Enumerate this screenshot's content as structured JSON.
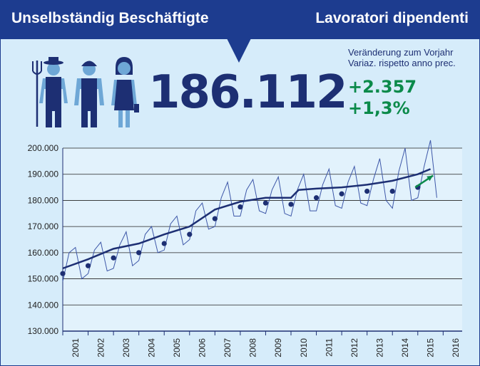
{
  "header": {
    "title_left": "Unselbständig Beschäftigte",
    "title_right": "Lavoratori dipendenti"
  },
  "headline": {
    "value": "186.112",
    "change_label_de": "Veränderung zum Vorjahr",
    "change_label_it": "Variaz. rispetto anno prec.",
    "change_abs": "+2.357",
    "change_pct": "+1,3%"
  },
  "icons": [
    "farmer-icon",
    "worker-icon",
    "office-worker-icon"
  ],
  "colors": {
    "header_bg": "#1d3c8f",
    "panel_bg": "#d6ecfa",
    "series_dark": "#1d2f73",
    "series_light": "#4a63b0",
    "accent_green": "#0b8a4a",
    "icon_blue": "#6ea7d6"
  },
  "chart_data": {
    "type": "line",
    "ylim": [
      130000,
      200000
    ],
    "y_ticks": [
      "130.000",
      "140.000",
      "150.000",
      "160.000",
      "170.000",
      "180.000",
      "190.000",
      "200.000"
    ],
    "x_tick_labels": [
      "2001",
      "2002",
      "2003",
      "2004",
      "2005",
      "2006",
      "2007",
      "2008",
      "2009",
      "2010",
      "2011",
      "2012",
      "2013",
      "2014",
      "2015",
      "2016"
    ],
    "grid": true,
    "series": [
      {
        "style": "monthly thin line",
        "x": [
          2001.0,
          2001.25,
          2001.5,
          2001.75,
          2002.0,
          2002.25,
          2002.5,
          2002.75,
          2003.0,
          2003.25,
          2003.5,
          2003.75,
          2004.0,
          2004.25,
          2004.5,
          2004.75,
          2005.0,
          2005.25,
          2005.5,
          2005.75,
          2006.0,
          2006.25,
          2006.5,
          2006.75,
          2007.0,
          2007.25,
          2007.5,
          2007.75,
          2008.0,
          2008.25,
          2008.5,
          2008.75,
          2009.0,
          2009.25,
          2009.5,
          2009.75,
          2010.0,
          2010.25,
          2010.5,
          2010.75,
          2011.0,
          2011.25,
          2011.5,
          2011.75,
          2012.0,
          2012.25,
          2012.5,
          2012.75,
          2013.0,
          2013.25,
          2013.5,
          2013.75,
          2014.0,
          2014.25,
          2014.5,
          2014.75,
          2015.0,
          2015.25,
          2015.5,
          2015.75
        ],
        "values": [
          149000,
          160000,
          162000,
          150000,
          152000,
          161000,
          164000,
          153000,
          154000,
          163000,
          168000,
          155000,
          157000,
          167000,
          170000,
          160000,
          161000,
          171000,
          174000,
          163000,
          165000,
          176000,
          179000,
          169000,
          170000,
          181000,
          187000,
          174000,
          174000,
          184000,
          188000,
          176000,
          175000,
          184000,
          189000,
          175000,
          174000,
          184000,
          190000,
          176000,
          176000,
          186000,
          192000,
          178000,
          177000,
          187000,
          193000,
          179000,
          178000,
          188000,
          196000,
          180000,
          177000,
          191000,
          200000,
          180000,
          181000,
          193000,
          203000,
          181000
        ]
      },
      {
        "style": "trend thick line",
        "x": [
          2001.0,
          2002.0,
          2003.0,
          2004.0,
          2005.0,
          2006.0,
          2007.0,
          2008.0,
          2009.0,
          2010.0,
          2010.3,
          2011.0,
          2012.0,
          2013.0,
          2014.0,
          2015.0,
          2015.5
        ],
        "values": [
          154000,
          157500,
          161500,
          163500,
          167000,
          170000,
          176500,
          179500,
          181000,
          181000,
          184000,
          184500,
          185000,
          186000,
          187500,
          190000,
          192000
        ]
      },
      {
        "style": "annual average dots",
        "x": [
          2001.0,
          2002.0,
          2003.0,
          2004.0,
          2005.0,
          2006.0,
          2007.0,
          2008.0,
          2009.0,
          2010.0,
          2011.0,
          2012.0,
          2013.0,
          2014.0,
          2015.0
        ],
        "values": [
          152000,
          155000,
          158000,
          160000,
          163500,
          167000,
          173000,
          177500,
          179000,
          178500,
          181000,
          182500,
          183500,
          183500,
          185000
        ]
      }
    ],
    "annotation_arrow": {
      "x_from": 2014.9,
      "y_from": 185000,
      "x_to": 2015.6,
      "y_to": 189500
    }
  }
}
